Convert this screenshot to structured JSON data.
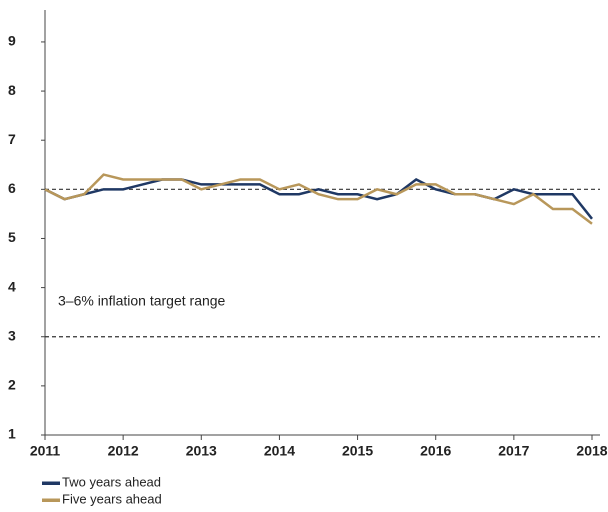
{
  "chart_data": {
    "type": "line",
    "annotation": "3–6% inflation target range",
    "reference_lines": [
      3,
      6
    ],
    "x": [
      2011,
      2011.25,
      2011.5,
      2011.75,
      2012,
      2012.25,
      2012.5,
      2012.75,
      2013,
      2013.25,
      2013.5,
      2013.75,
      2014,
      2014.25,
      2014.5,
      2014.75,
      2015,
      2015.25,
      2015.5,
      2015.75,
      2016,
      2016.25,
      2016.5,
      2016.75,
      2017,
      2017.25,
      2017.5,
      2017.75,
      2018
    ],
    "series": [
      {
        "name": "Two years ahead",
        "color": "#1f3864",
        "values": [
          6.0,
          5.8,
          5.9,
          6.0,
          6.0,
          6.1,
          6.2,
          6.2,
          6.1,
          6.1,
          6.1,
          6.1,
          5.9,
          5.9,
          6.0,
          5.9,
          5.9,
          5.8,
          5.9,
          6.2,
          6.0,
          5.9,
          5.9,
          5.8,
          6.0,
          5.9,
          5.9,
          5.9,
          5.4
        ]
      },
      {
        "name": "Five years ahead",
        "color": "#b8975a",
        "values": [
          6.0,
          5.8,
          5.9,
          6.3,
          6.2,
          6.2,
          6.2,
          6.2,
          6.0,
          6.1,
          6.2,
          6.2,
          6.0,
          6.1,
          5.9,
          5.8,
          5.8,
          6.0,
          5.9,
          6.1,
          6.1,
          5.9,
          5.9,
          5.8,
          5.7,
          5.9,
          5.6,
          5.6,
          5.3
        ]
      }
    ],
    "xlim": [
      2011,
      2018
    ],
    "xticks": [
      2011,
      2012,
      2013,
      2014,
      2015,
      2016,
      2017,
      2018
    ],
    "ylim": [
      1,
      9.65
    ],
    "yticks": [
      1,
      2,
      3,
      4,
      5,
      6,
      7,
      8,
      9
    ]
  }
}
